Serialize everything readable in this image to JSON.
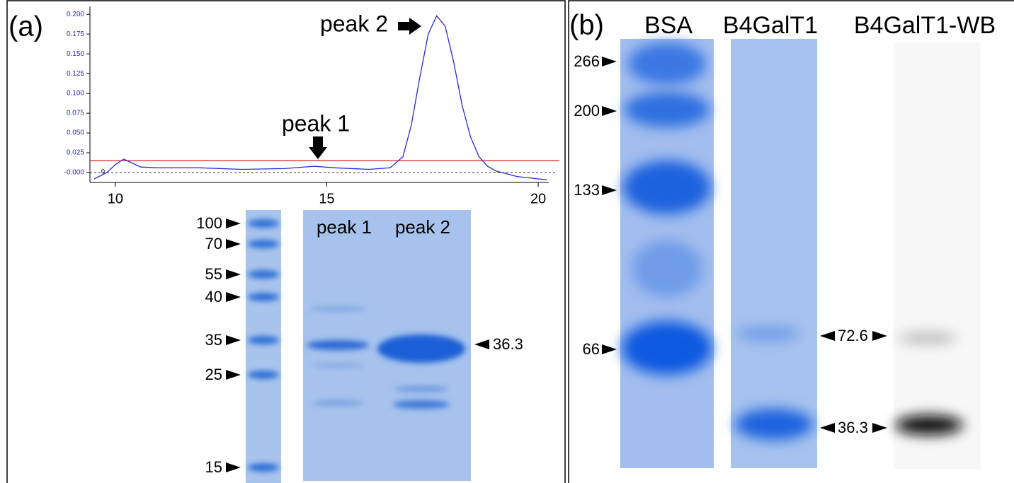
{
  "panel_a": {
    "label": "(a)",
    "chromatogram": {
      "type": "line",
      "x": [
        9.5,
        9.8,
        10.0,
        10.2,
        10.4,
        10.6,
        11,
        12,
        13,
        14,
        14.7,
        15.2,
        16,
        16.5,
        16.8,
        17.0,
        17.2,
        17.4,
        17.6,
        17.8,
        18.0,
        18.2,
        18.4,
        18.6,
        18.8,
        19.0,
        19.5,
        20.0,
        20.2
      ],
      "values": [
        -0.008,
        0.0,
        0.01,
        0.017,
        0.012,
        0.007,
        0.006,
        0.006,
        0.004,
        0.005,
        0.008,
        0.006,
        0.004,
        0.006,
        0.02,
        0.06,
        0.12,
        0.175,
        0.198,
        0.185,
        0.14,
        0.085,
        0.045,
        0.02,
        0.008,
        0.002,
        -0.005,
        -0.008,
        -0.009
      ],
      "color": "#2a2ad0",
      "xlim": [
        9.4,
        20.25
      ],
      "ylim": [
        -0.0125,
        0.21
      ],
      "xticks": [
        10,
        15,
        20
      ],
      "yticks": [
        {
          "value": 0,
          "label": "-0.000"
        },
        {
          "value": 0.025,
          "label": "0.025"
        },
        {
          "value": 0.05,
          "label": "0.050"
        },
        {
          "value": 0.075,
          "label": "0.075"
        },
        {
          "value": 0.1,
          "label": "0.100"
        },
        {
          "value": 0.125,
          "label": "0.125"
        },
        {
          "value": 0.15,
          "label": "0.150"
        },
        {
          "value": 0.175,
          "label": "0.175"
        },
        {
          "value": 0.2,
          "label": "0.200"
        }
      ],
      "threshold": 0.015,
      "threshold_color": "#d02020",
      "zero_label": "0",
      "annotations": [
        "peak 1",
        "peak 2"
      ]
    },
    "gel": {
      "lanes": [
        "peak 1",
        "peak 2"
      ],
      "markers": [
        "100",
        "70",
        "55",
        "40",
        "35",
        "25",
        "15"
      ],
      "band_label": "36.3"
    }
  },
  "panel_b": {
    "label": "(b)",
    "lanes": [
      "BSA",
      "B4GalT1",
      "B4GalT1-WB"
    ],
    "markers": [
      "266",
      "200",
      "133",
      "66"
    ],
    "band_labels": [
      "72.6",
      "36.3"
    ]
  }
}
